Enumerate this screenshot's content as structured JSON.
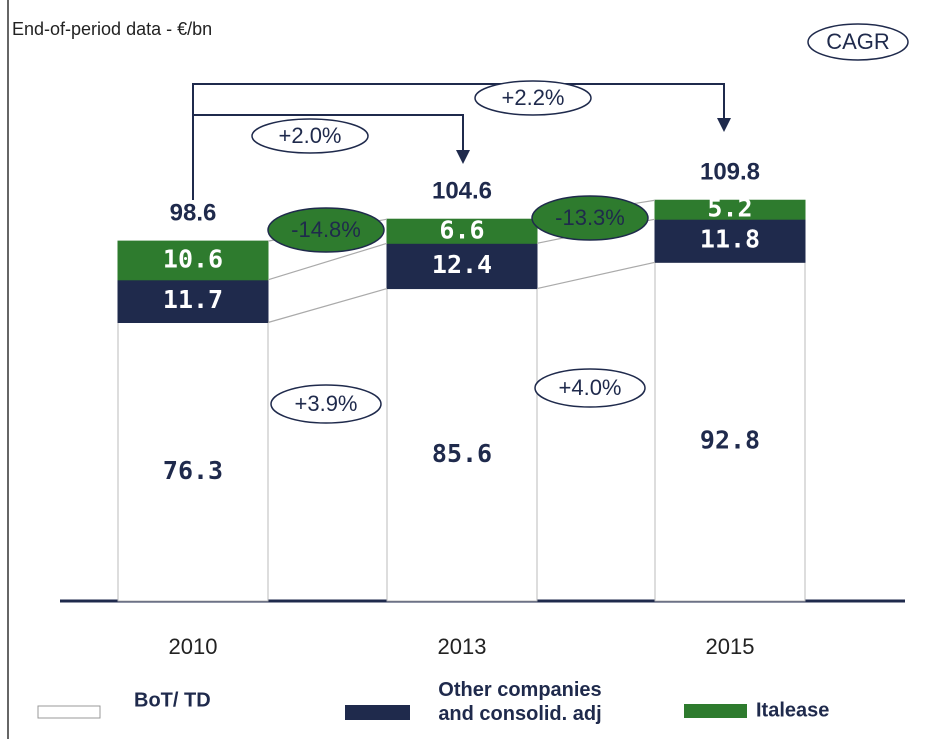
{
  "chart_data": {
    "type": "stacked_bar",
    "subtitle": "End-of-period data  - €/bn",
    "cagr_label": "CAGR",
    "categories": [
      "2010",
      "2013",
      "2015"
    ],
    "series": [
      {
        "name": "BoT/ TD",
        "color": "#ffffff",
        "values": [
          76.3,
          85.6,
          92.8
        ]
      },
      {
        "name": "Other companies and consolid. adj",
        "color": "#1f2a4c",
        "values": [
          11.7,
          12.4,
          11.8
        ]
      },
      {
        "name": "Italease",
        "color": "#2e7b2e",
        "values": [
          10.6,
          6.6,
          5.2
        ]
      }
    ],
    "totals": [
      98.6,
      104.6,
      109.8
    ],
    "cagr": {
      "total": "+2.2%",
      "first_period": "+2.0%",
      "italease": [
        "-14.8%",
        "-13.3%"
      ],
      "bot_td": [
        "+3.9%",
        "+4.0%"
      ]
    }
  }
}
